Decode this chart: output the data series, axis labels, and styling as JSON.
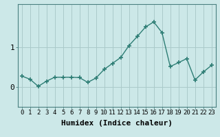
{
  "x": [
    0,
    1,
    2,
    3,
    4,
    5,
    6,
    7,
    8,
    9,
    10,
    11,
    12,
    13,
    14,
    15,
    16,
    17,
    18,
    19,
    20,
    21,
    22,
    23
  ],
  "y": [
    0.28,
    0.2,
    0.02,
    0.15,
    0.25,
    0.25,
    0.25,
    0.24,
    0.12,
    0.23,
    0.45,
    0.6,
    0.75,
    1.05,
    1.28,
    1.52,
    1.65,
    1.38,
    0.52,
    0.62,
    0.72,
    0.18,
    0.38,
    0.55
  ],
  "line_color": "#2d7d74",
  "marker": "+",
  "markersize": 4,
  "linewidth": 1.0,
  "bg_color": "#cce8e8",
  "grid_color": "#aacaca",
  "xlabel": "Humidex (Indice chaleur)",
  "yticks": [
    0,
    1
  ],
  "ylim": [
    -0.5,
    2.1
  ],
  "xlim": [
    -0.5,
    23.5
  ],
  "xlabel_fontsize": 8,
  "ytick_fontsize": 8,
  "xtick_fontsize": 6.5
}
